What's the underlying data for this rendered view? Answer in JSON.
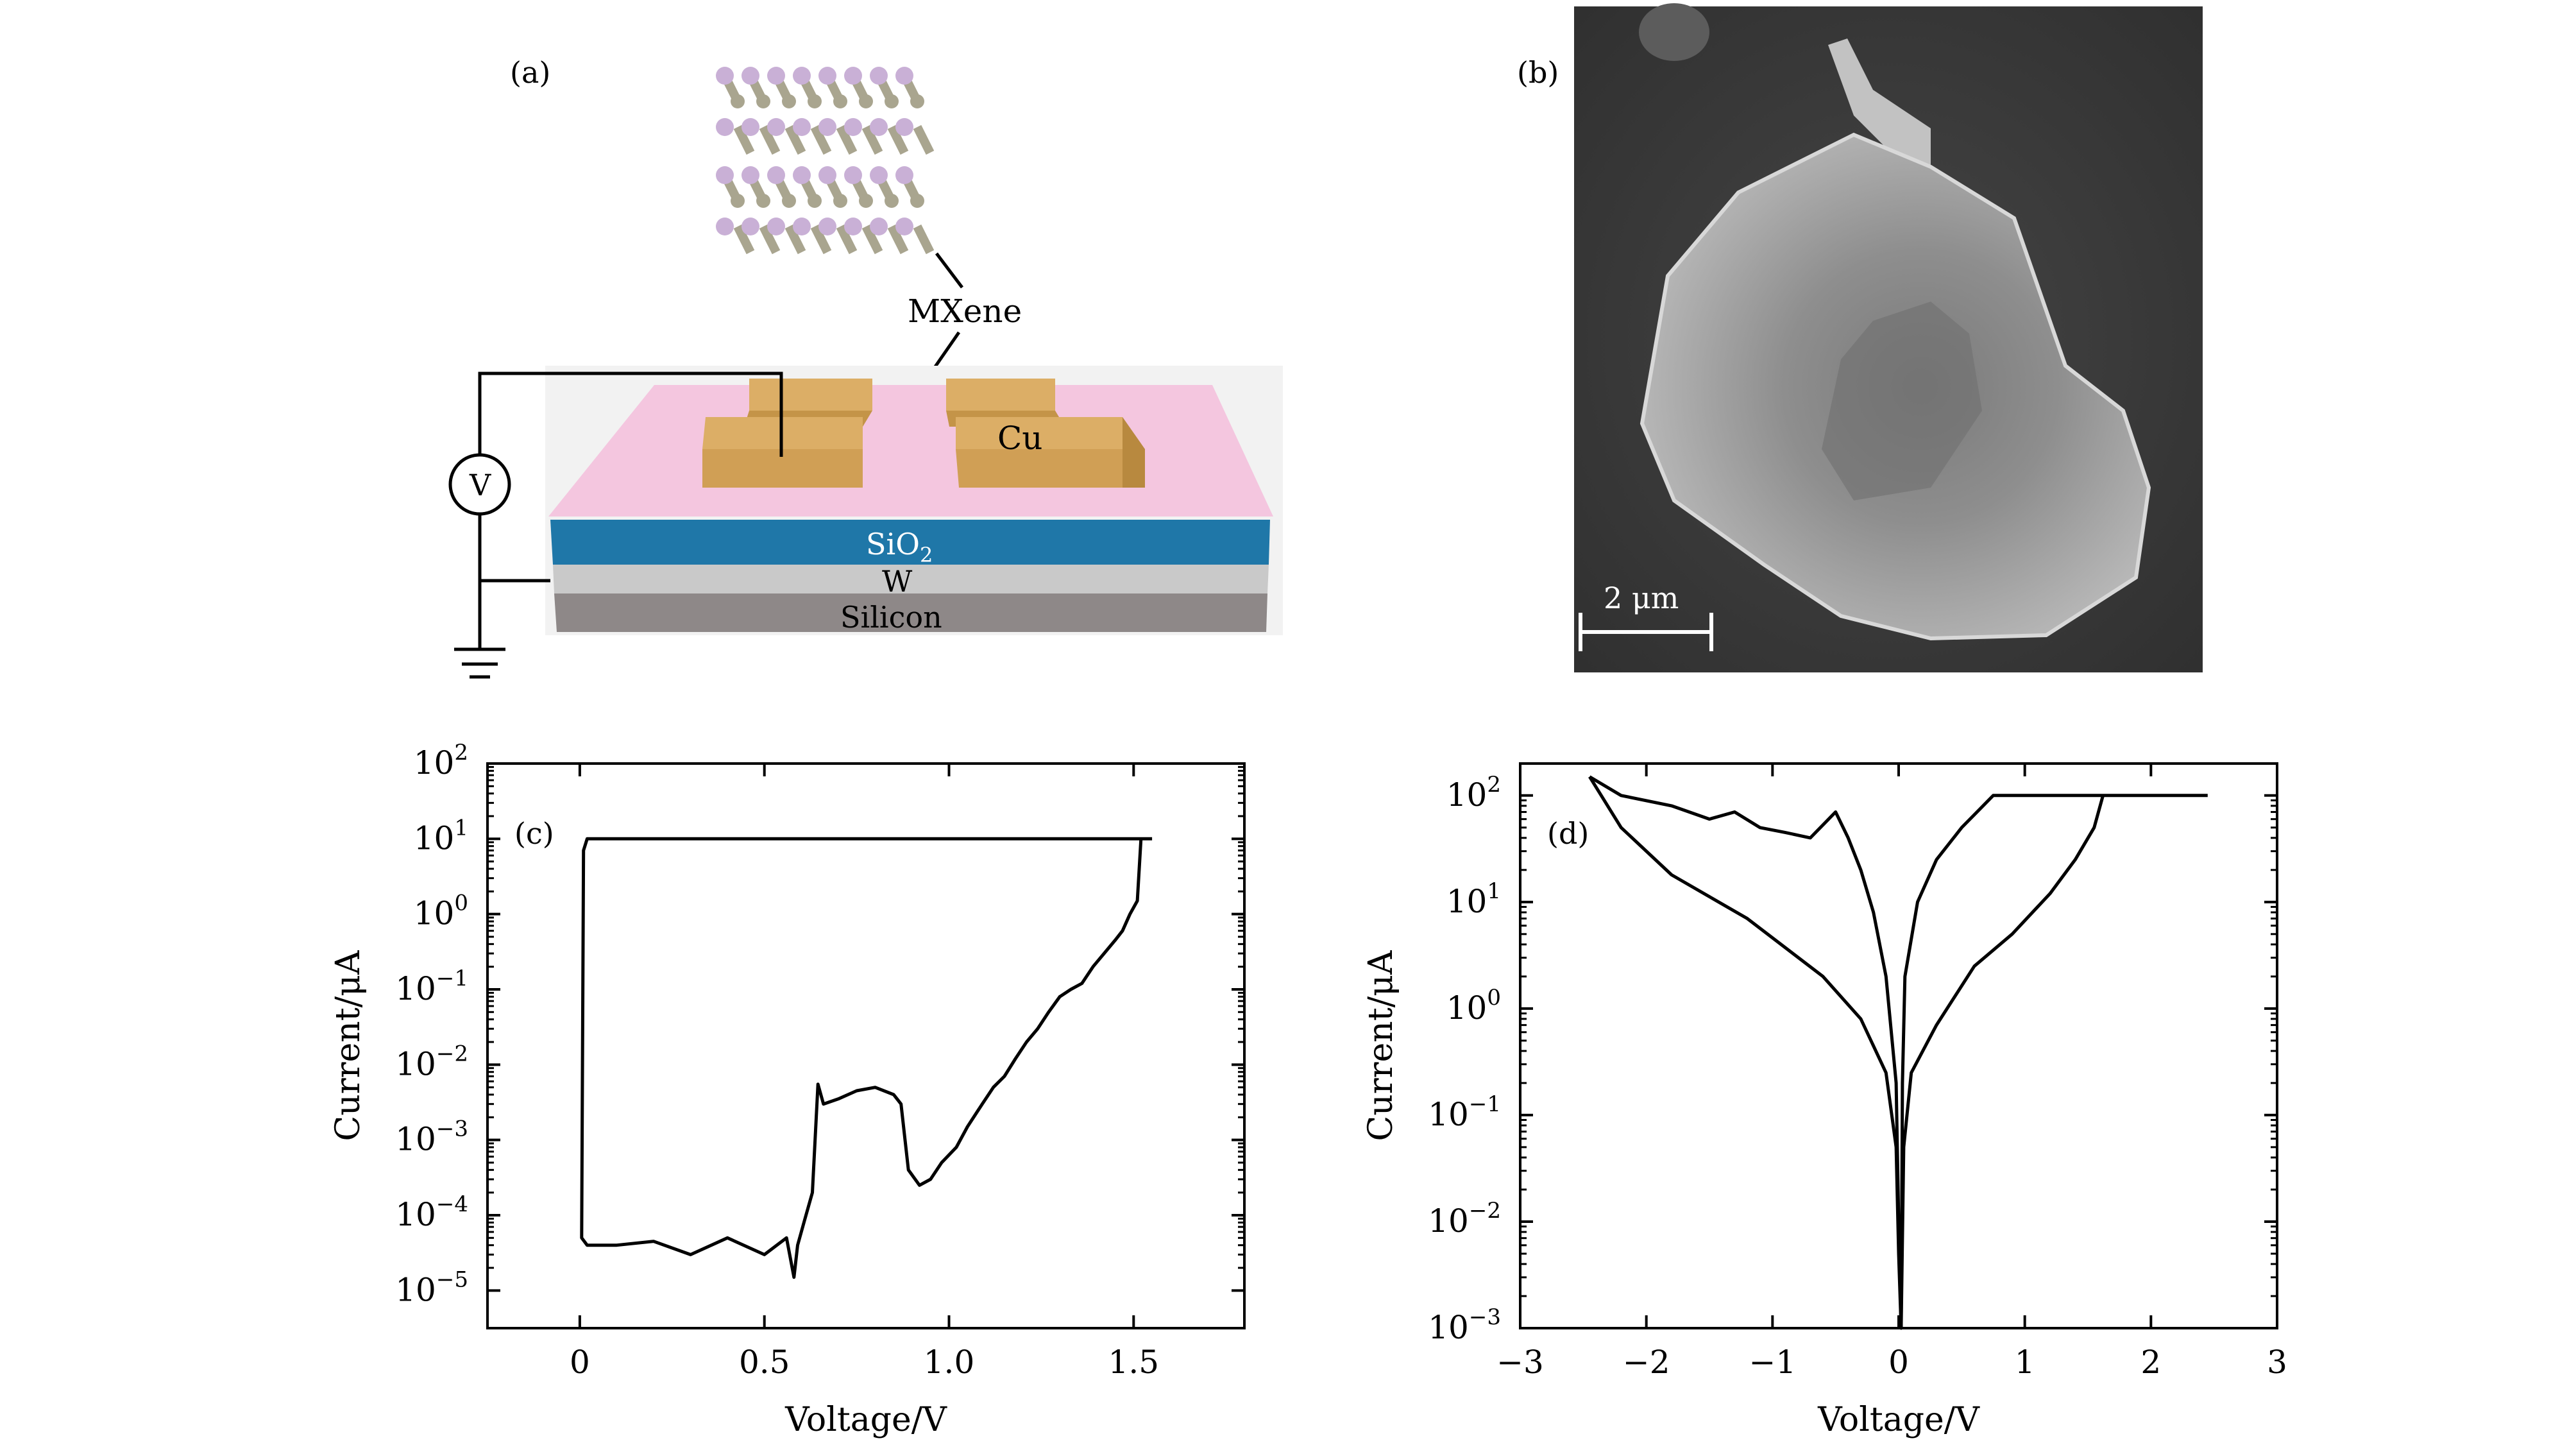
{
  "panels": {
    "a": {
      "label": "(a)",
      "labels": {
        "mxene": "MXene",
        "cu": "Cu",
        "sio2_main": "SiO",
        "sio2_sub": "2",
        "w": "W",
        "silicon": "Silicon",
        "voltmeter": "V"
      },
      "colors": {
        "pink": "#f4c6df",
        "cu": "#dcae66",
        "sio2": "#1f77a8",
        "w": "#c9c9c9",
        "silicon": "#8e8888",
        "atom_m": "#c9b0d6",
        "atom_x": "#a9a58f"
      }
    },
    "b": {
      "label": "(b)",
      "scalebar": "2 μm",
      "colors": {
        "background": "#3b3b3b",
        "flake": "#a8a8a8"
      }
    },
    "c": {
      "label": "(c)"
    },
    "d": {
      "label": "(d)"
    }
  },
  "chart_data": [
    {
      "id": "c",
      "type": "line",
      "xlabel": "Voltage/V",
      "ylabel": "Current/μA",
      "xlim": [
        -0.25,
        1.8
      ],
      "ylim_exp": [
        -5.5,
        2
      ],
      "yscale": "log",
      "xticks": [
        0,
        0.5,
        1.0,
        1.5
      ],
      "xtick_labels": [
        "0",
        "0.5",
        "1.0",
        "1.5"
      ],
      "yticks_exp": [
        -5,
        -4,
        -3,
        -2,
        -1,
        0,
        1,
        2
      ],
      "ytick_labels": [
        {
          "base": "10",
          "exp": "−5"
        },
        {
          "base": "10",
          "exp": "−4"
        },
        {
          "base": "10",
          "exp": "−3"
        },
        {
          "base": "10",
          "exp": "−2"
        },
        {
          "base": "10",
          "exp": "−1"
        },
        {
          "base": "10",
          "exp": "0"
        },
        {
          "base": "10",
          "exp": "1"
        },
        {
          "base": "10",
          "exp": "2"
        }
      ],
      "series": [
        {
          "points": [
            [
              1.52,
              10
            ],
            [
              1.51,
              1.5
            ],
            [
              1.49,
              1.0
            ],
            [
              1.47,
              0.6
            ],
            [
              1.45,
              0.45
            ],
            [
              1.42,
              0.3
            ],
            [
              1.39,
              0.2
            ],
            [
              1.36,
              0.12
            ],
            [
              1.33,
              0.1
            ],
            [
              1.3,
              0.08
            ],
            [
              1.27,
              0.05
            ],
            [
              1.24,
              0.03
            ],
            [
              1.21,
              0.02
            ],
            [
              1.18,
              0.012
            ],
            [
              1.15,
              0.007
            ],
            [
              1.12,
              0.005
            ],
            [
              1.09,
              0.003
            ],
            [
              1.05,
              0.0015
            ],
            [
              1.02,
              0.0008
            ],
            [
              0.98,
              0.0005
            ],
            [
              0.95,
              0.0003
            ],
            [
              0.92,
              0.00025
            ],
            [
              0.89,
              0.0004
            ],
            [
              0.87,
              0.003
            ],
            [
              0.85,
              0.004
            ],
            [
              0.8,
              0.005
            ],
            [
              0.75,
              0.0045
            ],
            [
              0.7,
              0.0035
            ],
            [
              0.66,
              0.003
            ],
            [
              0.645,
              0.0055
            ],
            [
              0.63,
              0.0002
            ],
            [
              0.61,
              9e-05
            ],
            [
              0.59,
              4e-05
            ],
            [
              0.58,
              1.5e-05
            ],
            [
              0.56,
              5e-05
            ],
            [
              0.5,
              3e-05
            ],
            [
              0.4,
              5e-05
            ],
            [
              0.3,
              3e-05
            ],
            [
              0.2,
              4.5e-05
            ],
            [
              0.1,
              4e-05
            ],
            [
              0.02,
              4e-05
            ],
            [
              0.005,
              5e-05
            ],
            [
              0.01,
              7
            ],
            [
              0.02,
              10
            ],
            [
              1.55,
              10
            ]
          ]
        }
      ]
    },
    {
      "id": "d",
      "type": "line",
      "xlabel": "Voltage/V",
      "ylabel": "Current/μA",
      "xlim": [
        -3,
        3
      ],
      "ylim_exp": [
        -3,
        2.3
      ],
      "yscale": "log",
      "xticks": [
        -3,
        -2,
        -1,
        0,
        1,
        2,
        3
      ],
      "xtick_labels": [
        "−3",
        "−2",
        "−1",
        "0",
        "1",
        "2",
        "3"
      ],
      "yticks_exp": [
        -3,
        -2,
        -1,
        0,
        1,
        2
      ],
      "ytick_labels": [
        {
          "base": "10",
          "exp": "−3"
        },
        {
          "base": "10",
          "exp": "−2"
        },
        {
          "base": "10",
          "exp": "−1"
        },
        {
          "base": "10",
          "exp": "0"
        },
        {
          "base": "10",
          "exp": "1"
        },
        {
          "base": "10",
          "exp": "2"
        }
      ],
      "series": [
        {
          "points": [
            [
              -2.45,
              150
            ],
            [
              -2.2,
              100
            ],
            [
              -1.8,
              80
            ],
            [
              -1.5,
              60
            ],
            [
              -1.3,
              70
            ],
            [
              -1.1,
              50
            ],
            [
              -0.9,
              45
            ],
            [
              -0.7,
              40
            ],
            [
              -0.5,
              70
            ],
            [
              -0.4,
              40
            ],
            [
              -0.3,
              20
            ],
            [
              -0.2,
              8
            ],
            [
              -0.1,
              2
            ],
            [
              -0.02,
              0.2
            ],
            [
              0.0,
              0.01
            ],
            [
              0.02,
              0.001
            ],
            [
              0.03,
              0.2
            ],
            [
              0.05,
              2
            ],
            [
              0.15,
              10
            ],
            [
              0.3,
              25
            ],
            [
              0.5,
              50
            ],
            [
              0.75,
              100
            ],
            [
              2.45,
              100
            ]
          ]
        },
        {
          "points": [
            [
              -2.45,
              150
            ],
            [
              -2.2,
              50
            ],
            [
              -1.8,
              18
            ],
            [
              -1.2,
              7
            ],
            [
              -0.6,
              2
            ],
            [
              -0.3,
              0.8
            ],
            [
              -0.1,
              0.25
            ],
            [
              -0.02,
              0.05
            ],
            [
              0.0,
              0.005
            ],
            [
              0.02,
              0.001
            ],
            [
              0.04,
              0.05
            ],
            [
              0.1,
              0.25
            ],
            [
              0.3,
              0.7
            ],
            [
              0.6,
              2.5
            ],
            [
              0.9,
              5
            ],
            [
              1.2,
              12
            ],
            [
              1.4,
              25
            ],
            [
              1.55,
              50
            ],
            [
              1.62,
              100
            ]
          ]
        }
      ]
    }
  ]
}
